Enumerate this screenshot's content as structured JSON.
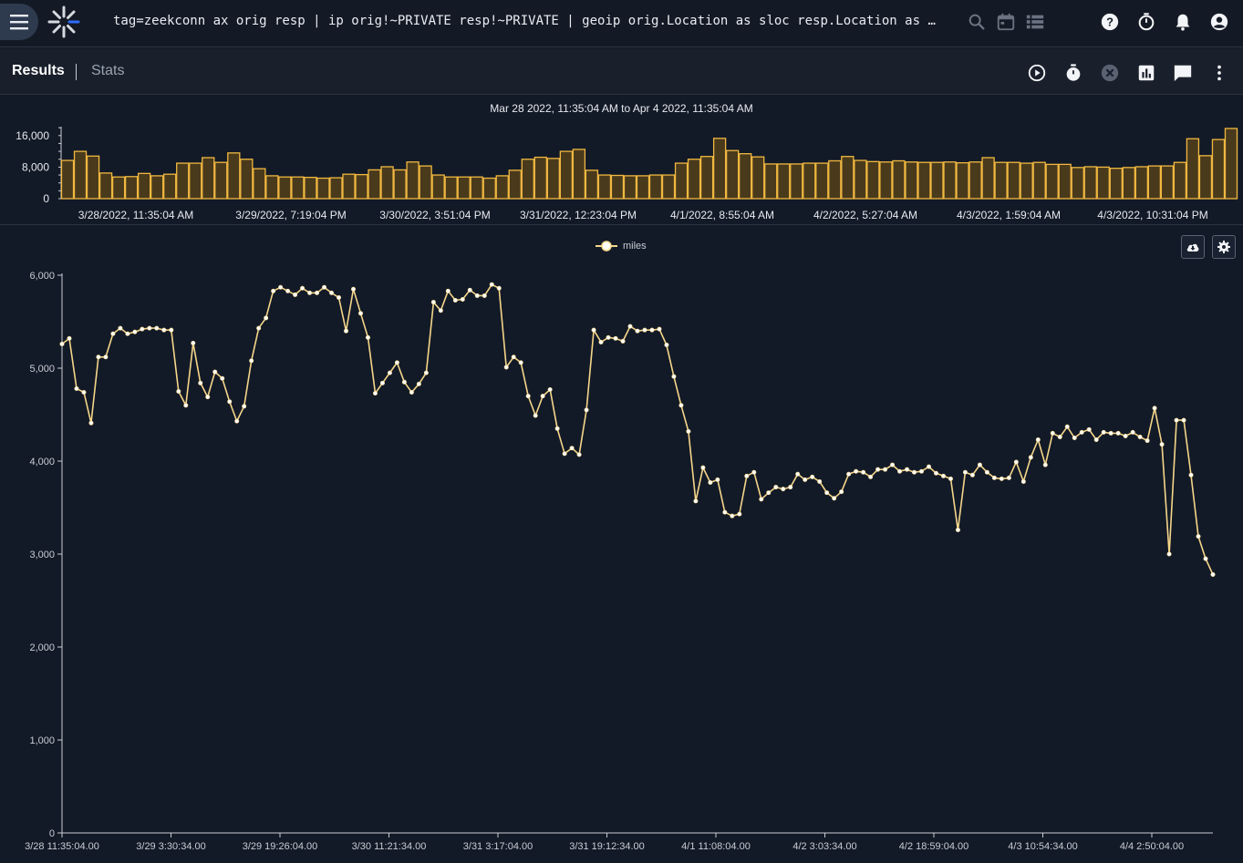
{
  "header": {
    "query": "tag=zeekconn ax orig resp | ip orig!~PRIVATE resp!~PRIVATE | geoip orig.Location as sloc resp.Location as dloc | distance sloc dloc | stats mean(distance) as miles | chart miles"
  },
  "icons": {
    "menu": "hamburger-icon",
    "logo": "gravwell-logo",
    "search": "search-icon",
    "calendar": "calendar-icon",
    "list": "list-icon",
    "help": "help-icon",
    "timer": "timer-icon",
    "bell": "bell-icon",
    "account": "account-icon"
  },
  "tabs": {
    "results": "Results",
    "stats": "Stats"
  },
  "overview": {
    "range_label": "Mar 28 2022, 11:35:04 AM to Apr 4 2022, 11:35:04 AM",
    "y_ticks": [
      {
        "value": 16000,
        "label": "16,000"
      },
      {
        "value": 8000,
        "label": "8,000"
      },
      {
        "value": 0,
        "label": "0"
      }
    ],
    "x_labels": [
      "3/28/2022, 11:35:04 AM",
      "3/29/2022, 7:19:04 PM",
      "3/30/2022, 3:51:04 PM",
      "3/31/2022, 12:23:04 PM",
      "4/1/2022, 8:55:04 AM",
      "4/2/2022, 5:27:04 AM",
      "4/3/2022, 1:59:04 AM",
      "4/3/2022, 10:31:04 PM"
    ],
    "counts": [
      9700,
      12000,
      10800,
      6500,
      5500,
      5600,
      6400,
      5800,
      6200,
      9000,
      9000,
      10400,
      9200,
      11600,
      10000,
      7600,
      5800,
      5500,
      5500,
      5400,
      5200,
      5300,
      6200,
      6100,
      7300,
      8100,
      7300,
      9300,
      8300,
      6000,
      5500,
      5500,
      5500,
      5200,
      5800,
      7200,
      10000,
      10500,
      10200,
      12000,
      12500,
      7200,
      6000,
      5900,
      5800,
      5800,
      6000,
      6000,
      9000,
      10000,
      10700,
      15300,
      12200,
      11400,
      10600,
      8800,
      8800,
      8800,
      9000,
      9000,
      9600,
      10700,
      9700,
      9400,
      9300,
      9600,
      9300,
      9200,
      9200,
      9300,
      9100,
      9300,
      10400,
      9200,
      9200,
      9000,
      9200,
      8700,
      8700,
      7900,
      8100,
      8000,
      7700,
      7900,
      8100,
      8300,
      8300,
      9200,
      15200,
      10900,
      15000,
      17800
    ],
    "color": "#f0b840"
  },
  "chart_data": {
    "type": "line",
    "series": [
      {
        "name": "miles",
        "color": "#f5d68a"
      }
    ],
    "legend_position": "top-center",
    "ylim": [
      0,
      6000
    ],
    "y_ticks": [
      {
        "value": 0,
        "label": "0"
      },
      {
        "value": 1000,
        "label": "1,000"
      },
      {
        "value": 2000,
        "label": "2,000"
      },
      {
        "value": 3000,
        "label": "3,000"
      },
      {
        "value": 4000,
        "label": "4,000"
      },
      {
        "value": 5000,
        "label": "5,000"
      },
      {
        "value": 6000,
        "label": "6,000"
      }
    ],
    "x_labels": [
      "3/28 11:35:04.00",
      "3/29 3:30:34.00",
      "3/29 19:26:04.00",
      "3/30 11:21:34.00",
      "3/31 3:17:04.00",
      "3/31 19:12:34.00",
      "4/1 11:08:04.00",
      "4/2 3:03:34.00",
      "4/2 18:59:04.00",
      "4/3 10:54:34.00",
      "4/4 2:50:04.00"
    ],
    "values": [
      5260,
      5320,
      4780,
      4740,
      4410,
      5120,
      5120,
      5370,
      5430,
      5370,
      5390,
      5420,
      5430,
      5430,
      5410,
      5410,
      4750,
      4600,
      5270,
      4840,
      4690,
      4960,
      4890,
      4640,
      4430,
      4590,
      5080,
      5430,
      5540,
      5830,
      5870,
      5830,
      5790,
      5860,
      5810,
      5810,
      5870,
      5810,
      5760,
      5400,
      5850,
      5590,
      5330,
      4730,
      4840,
      4950,
      5060,
      4850,
      4740,
      4830,
      4950,
      5710,
      5620,
      5830,
      5730,
      5740,
      5840,
      5780,
      5780,
      5900,
      5860,
      5010,
      5120,
      5060,
      4700,
      4490,
      4700,
      4770,
      4350,
      4080,
      4140,
      4070,
      4550,
      5410,
      5280,
      5330,
      5320,
      5290,
      5450,
      5400,
      5410,
      5410,
      5420,
      5250,
      4910,
      4600,
      4320,
      3570,
      3930,
      3770,
      3800,
      3450,
      3410,
      3430,
      3840,
      3880,
      3590,
      3660,
      3720,
      3700,
      3720,
      3860,
      3800,
      3830,
      3780,
      3660,
      3600,
      3670,
      3860,
      3890,
      3880,
      3830,
      3910,
      3910,
      3960,
      3890,
      3910,
      3880,
      3890,
      3940,
      3870,
      3840,
      3810,
      3260,
      3880,
      3850,
      3960,
      3880,
      3820,
      3810,
      3820,
      3990,
      3780,
      4040,
      4230,
      3960,
      4300,
      4260,
      4370,
      4250,
      4310,
      4340,
      4230,
      4310,
      4300,
      4300,
      4270,
      4310,
      4260,
      4220,
      4570,
      4180,
      3000,
      4440,
      4440,
      3850,
      3190,
      2950,
      2780
    ]
  },
  "chart_buttons": {
    "download": "cloud-download-icon",
    "settings": "gear-icon"
  }
}
